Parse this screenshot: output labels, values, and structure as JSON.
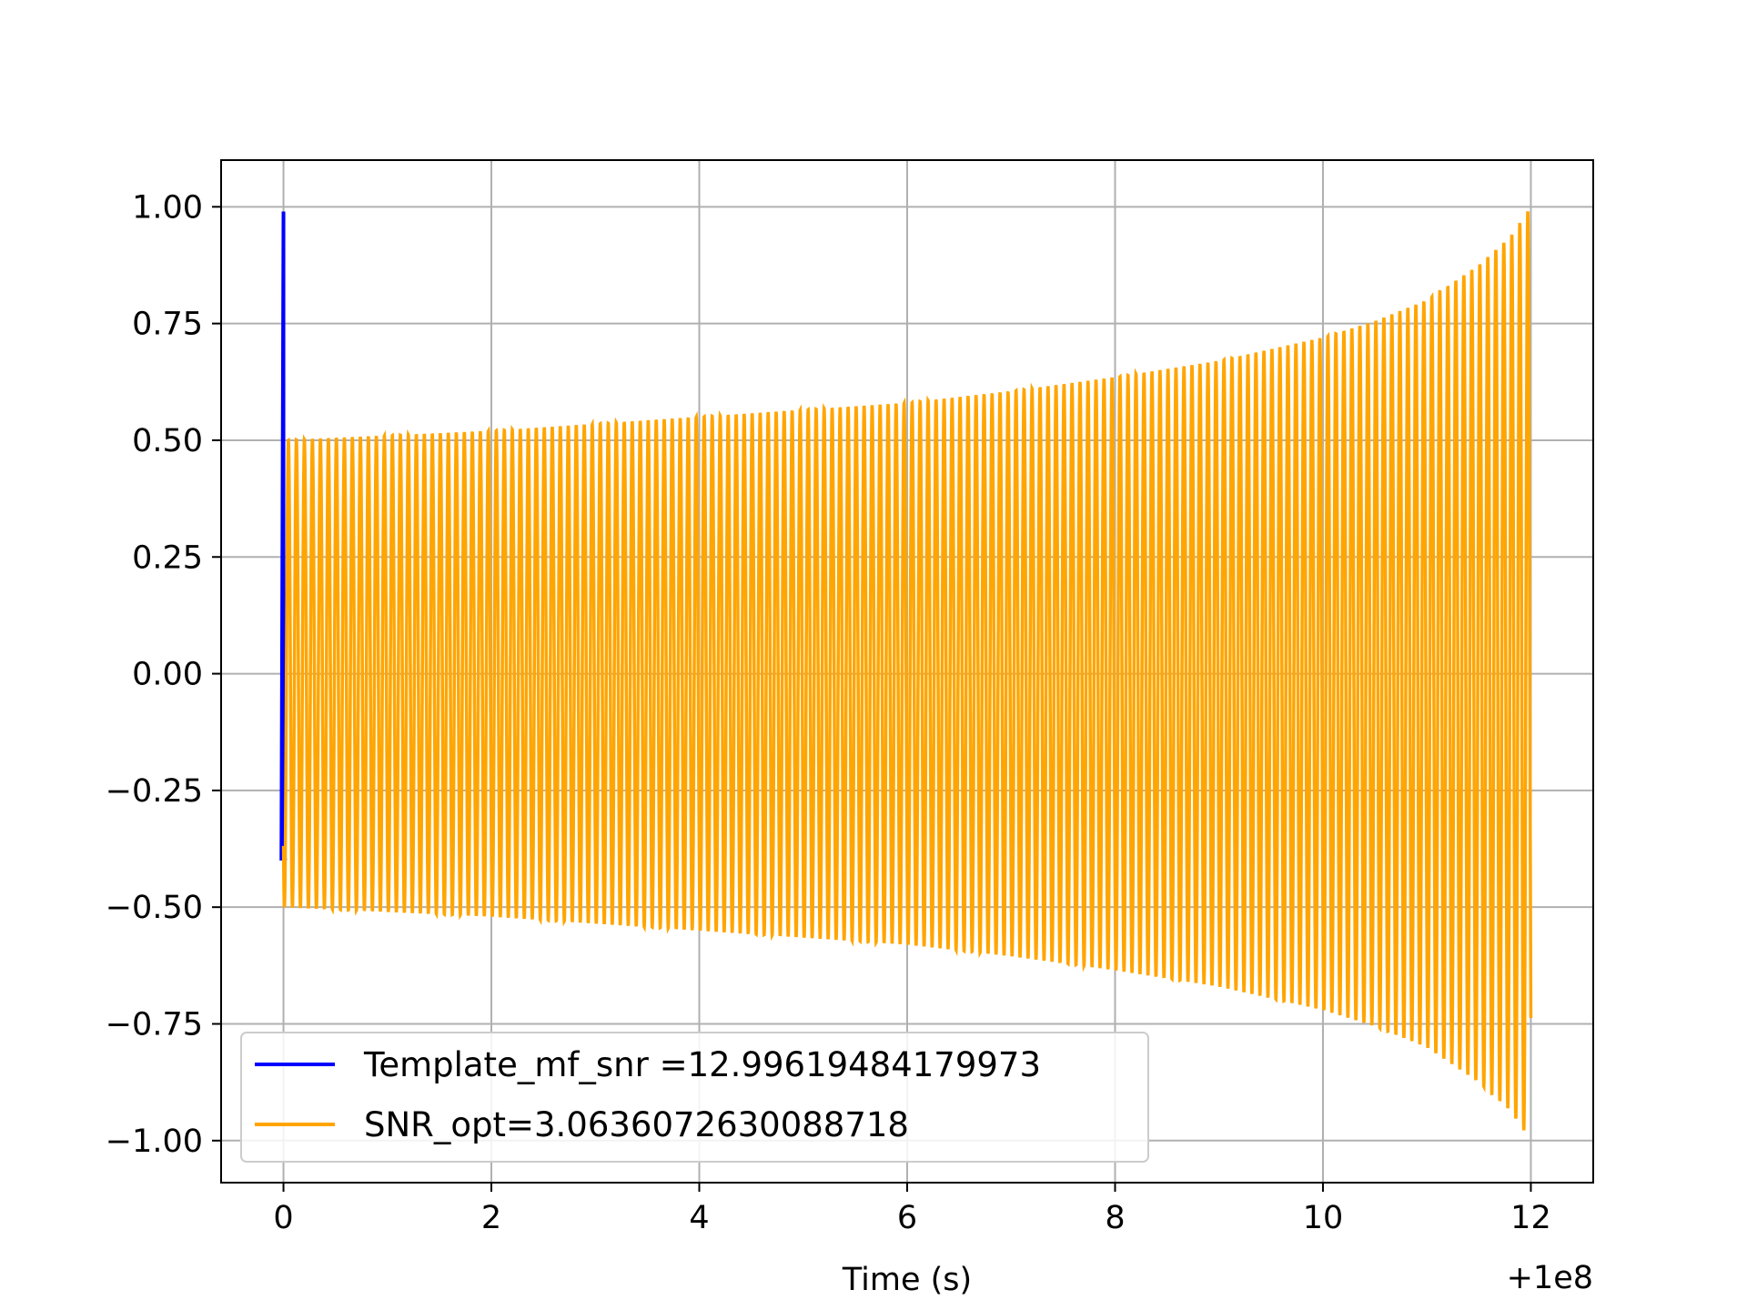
{
  "chart_data": {
    "type": "line",
    "title": "",
    "xlabel": "Time (s)",
    "ylabel": "",
    "x_offset_label": "+1e8",
    "xlim": [
      -0.6,
      12.6
    ],
    "ylim": [
      -1.09,
      1.1
    ],
    "x_ticks": [
      0,
      2,
      4,
      6,
      8,
      10,
      12
    ],
    "x_tick_labels": [
      "0",
      "2",
      "4",
      "6",
      "8",
      "10",
      "12"
    ],
    "y_ticks": [
      1.0,
      0.75,
      0.5,
      0.25,
      0.0,
      -0.25,
      -0.5,
      -0.75,
      -1.0
    ],
    "y_tick_labels": [
      "1.00",
      "0.75",
      "0.50",
      "0.25",
      "0.00",
      "−0.25",
      "−0.50",
      "−0.75",
      "−1.00"
    ],
    "grid": true,
    "legend_position": "lower-left",
    "series": [
      {
        "name": "Template_mf_snr =12.99619484179973",
        "color": "#0000ff",
        "x": [
          -0.02,
          0.0,
          0.0,
          0.02
        ],
        "y": [
          -0.4,
          0.99,
          -0.39,
          -0.4
        ]
      },
      {
        "name": "SNR_opt=3.0636072630088718",
        "color": "#ffa500",
        "envelope": {
          "t": [
            0,
            1,
            2,
            3,
            4,
            5,
            6,
            7,
            8,
            9,
            10,
            10.5,
            11,
            11.5,
            11.8,
            12
          ],
          "amplitude": [
            0.5,
            0.51,
            0.52,
            0.535,
            0.55,
            0.565,
            0.58,
            0.605,
            0.635,
            0.67,
            0.72,
            0.755,
            0.8,
            0.875,
            0.935,
            1.0
          ]
        },
        "cycles_per_second": 13,
        "start": 0,
        "end": 12
      }
    ]
  }
}
